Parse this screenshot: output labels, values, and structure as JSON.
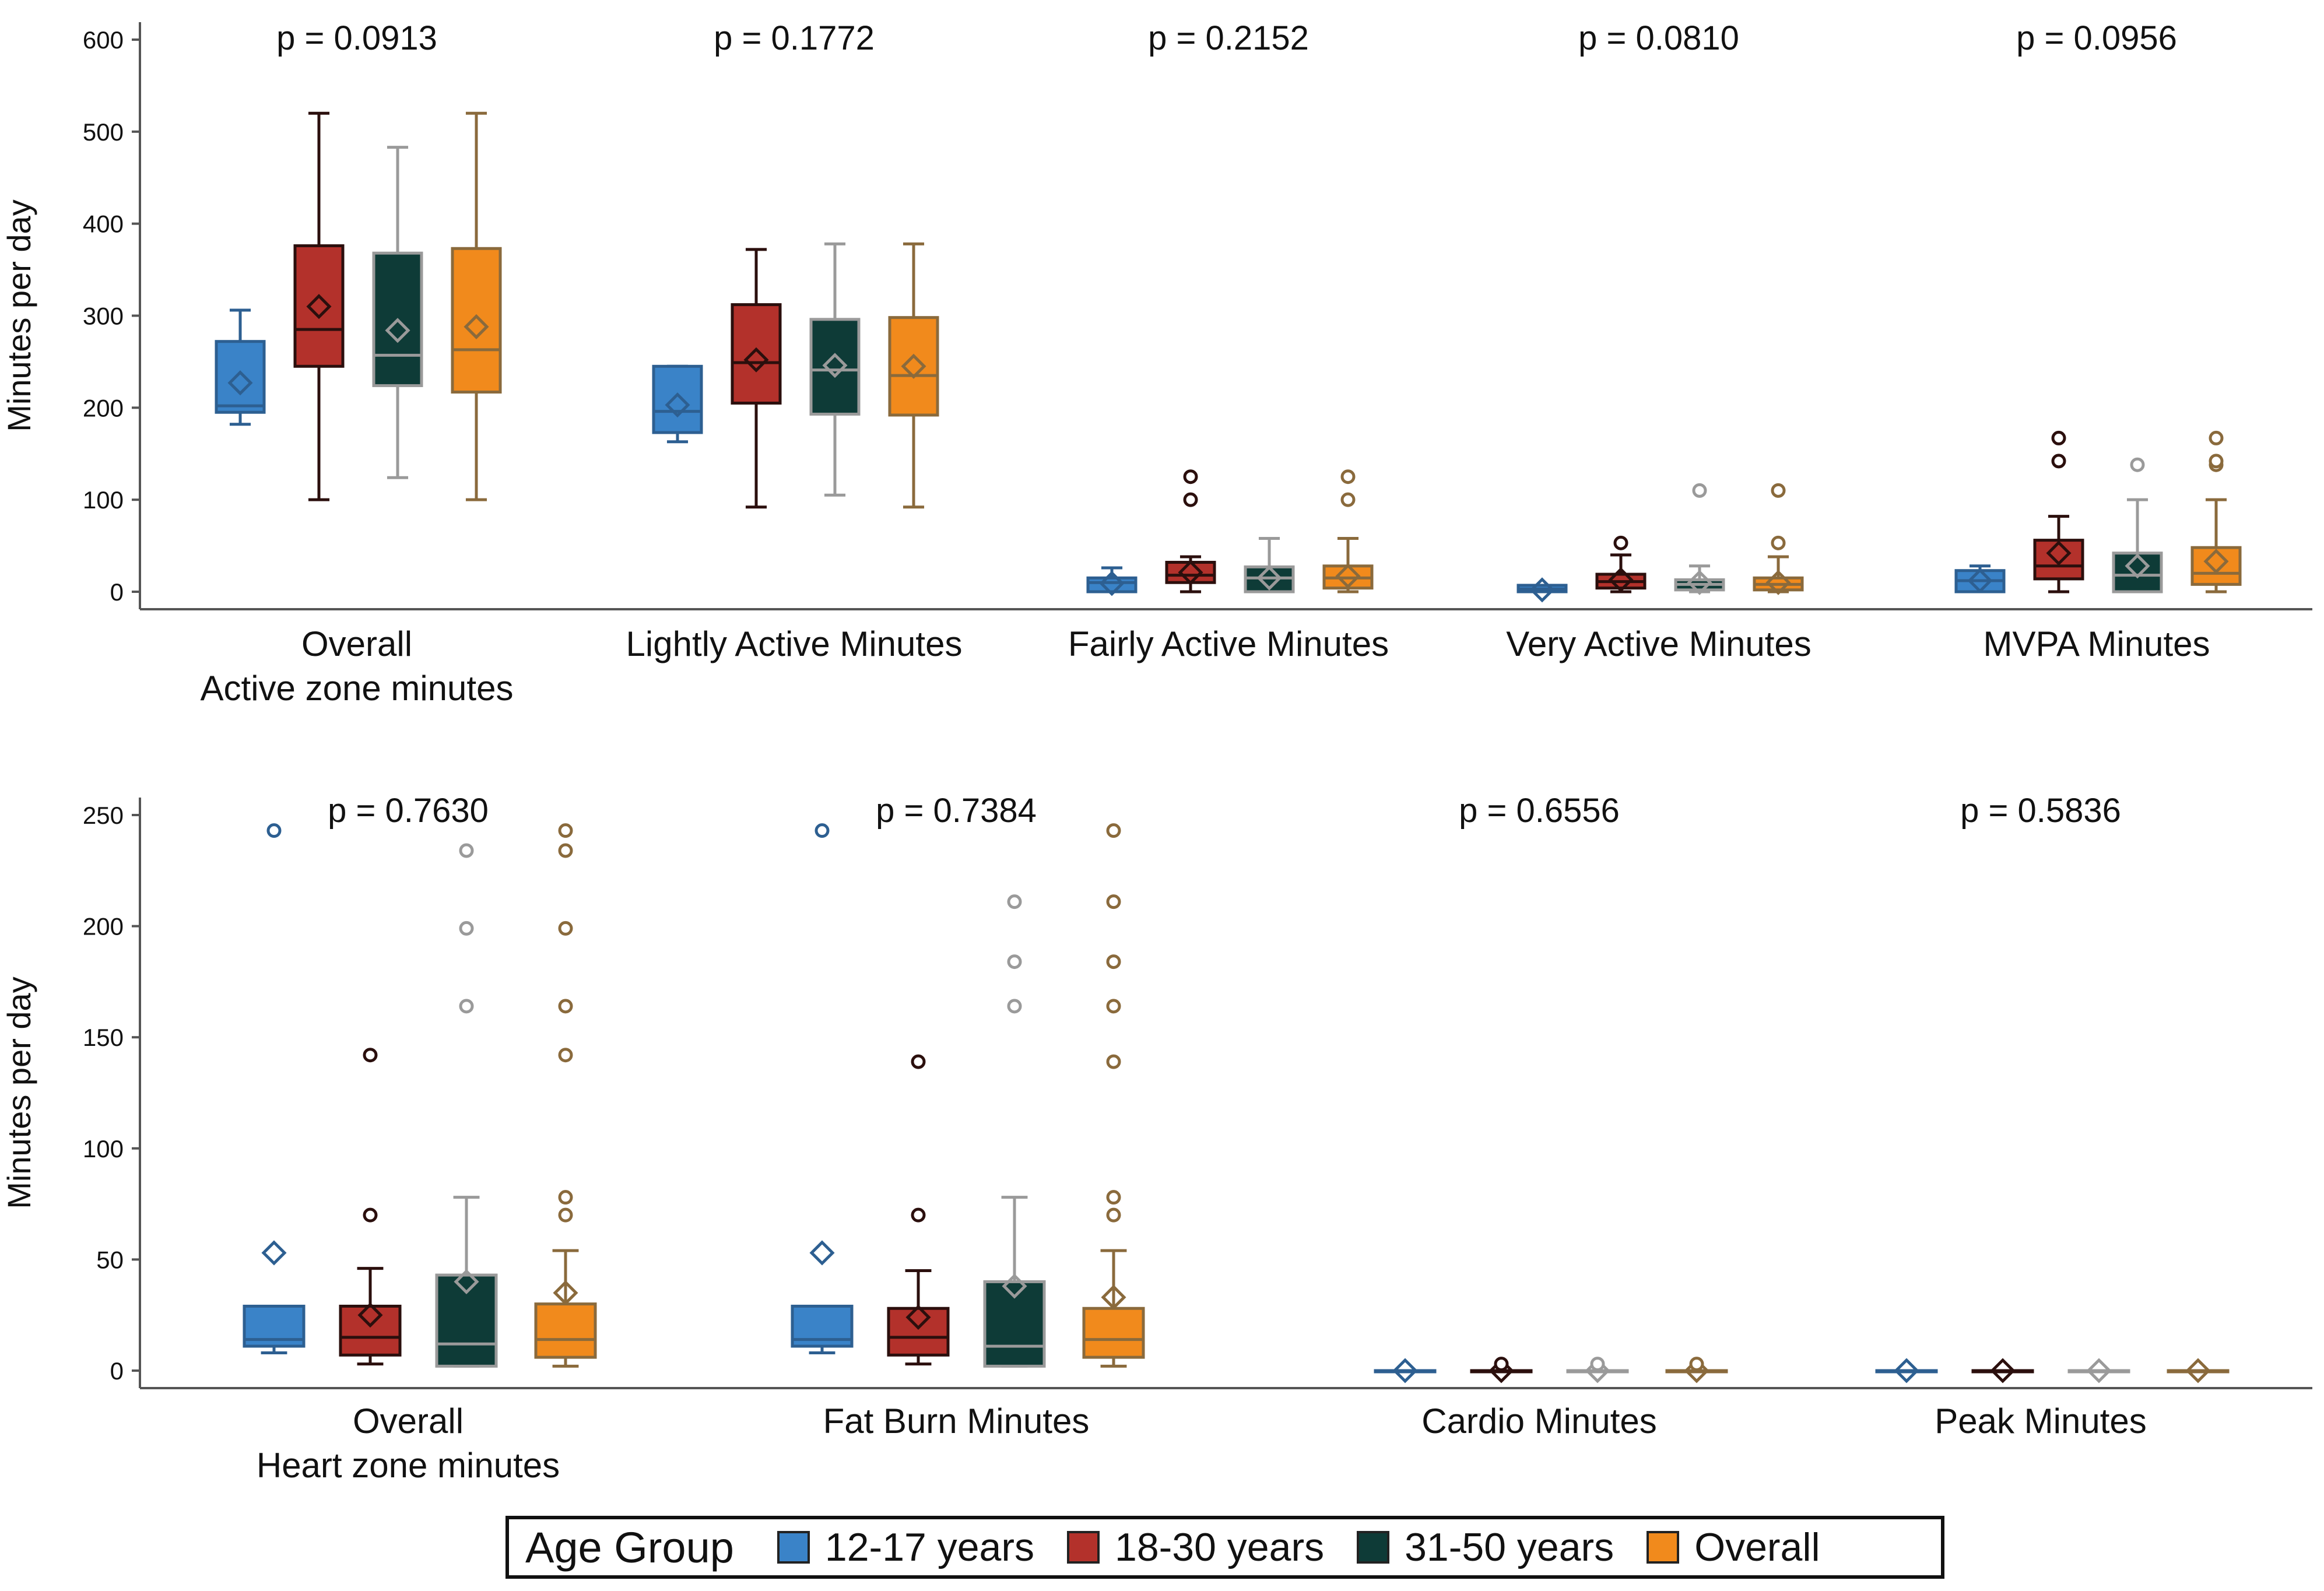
{
  "chart_data": [
    {
      "type": "box",
      "ylabel": "Minutes per day",
      "ylim": [
        0,
        600
      ],
      "yticks": [
        0,
        100,
        200,
        300,
        400,
        500,
        600
      ],
      "groups": [
        {
          "label": [
            "Overall",
            "Active zone minutes"
          ],
          "p_value": "p = 0.0913",
          "boxes": [
            {
              "series": "12-17 years",
              "min": 182,
              "q1": 195,
              "median": 202,
              "q3": 272,
              "max": 306,
              "mean": 227,
              "outliers": []
            },
            {
              "series": "18-30 years",
              "min": 100,
              "q1": 245,
              "median": 285,
              "q3": 376,
              "max": 520,
              "mean": 310,
              "outliers": []
            },
            {
              "series": "31-50 years",
              "min": 124,
              "q1": 224,
              "median": 257,
              "q3": 368,
              "max": 483,
              "mean": 284,
              "outliers": []
            },
            {
              "series": "Overall",
              "min": 100,
              "q1": 217,
              "median": 263,
              "q3": 373,
              "max": 520,
              "mean": 288,
              "outliers": []
            }
          ]
        },
        {
          "label": [
            "Lightly Active Minutes"
          ],
          "p_value": "p = 0.1772",
          "boxes": [
            {
              "series": "12-17 years",
              "min": 163,
              "q1": 173,
              "median": 196,
              "q3": 245,
              "max": 245,
              "mean": 203,
              "outliers": []
            },
            {
              "series": "18-30 years",
              "min": 92,
              "q1": 205,
              "median": 249,
              "q3": 312,
              "max": 372,
              "mean": 252,
              "outliers": []
            },
            {
              "series": "31-50 years",
              "min": 105,
              "q1": 193,
              "median": 241,
              "q3": 296,
              "max": 378,
              "mean": 246,
              "outliers": []
            },
            {
              "series": "Overall",
              "min": 92,
              "q1": 192,
              "median": 235,
              "q3": 298,
              "max": 378,
              "mean": 245,
              "outliers": []
            }
          ]
        },
        {
          "label": [
            "Fairly Active Minutes"
          ],
          "p_value": "p = 0.2152",
          "boxes": [
            {
              "series": "12-17 years",
              "min": 0,
              "q1": 0,
              "median": 10,
              "q3": 15,
              "max": 26,
              "mean": 9,
              "outliers": []
            },
            {
              "series": "18-30 years",
              "min": 0,
              "q1": 10,
              "median": 18,
              "q3": 32,
              "max": 38,
              "mean": 21,
              "outliers": [
                100,
                125
              ]
            },
            {
              "series": "31-50 years",
              "min": 0,
              "q1": 0,
              "median": 15,
              "q3": 27,
              "max": 58,
              "mean": 15,
              "outliers": []
            },
            {
              "series": "Overall",
              "min": 0,
              "q1": 4,
              "median": 15,
              "q3": 28,
              "max": 58,
              "mean": 17,
              "outliers": [
                100,
                125
              ]
            }
          ]
        },
        {
          "label": [
            "Very Active Minutes"
          ],
          "p_value": "p = 0.0810",
          "boxes": [
            {
              "series": "12-17 years",
              "min": 0,
              "q1": 0,
              "median": 3,
              "q3": 7,
              "max": 7,
              "mean": 2,
              "outliers": []
            },
            {
              "series": "18-30 years",
              "min": 0,
              "q1": 4,
              "median": 11,
              "q3": 19,
              "max": 40,
              "mean": 13,
              "outliers": [
                53
              ]
            },
            {
              "series": "31-50 years",
              "min": 0,
              "q1": 2,
              "median": 8,
              "q3": 13,
              "max": 28,
              "mean": 10,
              "outliers": [
                110
              ]
            },
            {
              "series": "Overall",
              "min": 0,
              "q1": 2,
              "median": 8,
              "q3": 15,
              "max": 38,
              "mean": 10,
              "outliers": [
                53,
                110
              ]
            }
          ]
        },
        {
          "label": [
            "MVPA Minutes"
          ],
          "p_value": "p = 0.0956",
          "boxes": [
            {
              "series": "12-17 years",
              "min": 0,
              "q1": 0,
              "median": 12,
              "q3": 23,
              "max": 28,
              "mean": 12,
              "outliers": []
            },
            {
              "series": "18-30 years",
              "min": 0,
              "q1": 14,
              "median": 28,
              "q3": 56,
              "max": 82,
              "mean": 42,
              "outliers": [
                142,
                167
              ]
            },
            {
              "series": "31-50 years",
              "min": 0,
              "q1": 0,
              "median": 18,
              "q3": 42,
              "max": 100,
              "mean": 28,
              "outliers": [
                138
              ]
            },
            {
              "series": "Overall",
              "min": 0,
              "q1": 8,
              "median": 20,
              "q3": 48,
              "max": 100,
              "mean": 33,
              "outliers": [
                138,
                142,
                167
              ]
            }
          ]
        }
      ]
    },
    {
      "type": "box",
      "ylabel": "Minutes per day",
      "ylim": [
        0,
        250
      ],
      "yticks": [
        0,
        50,
        100,
        150,
        200,
        250
      ],
      "groups": [
        {
          "label": [
            "Overall",
            "Heart zone minutes"
          ],
          "p_value": "p = 0.7630",
          "boxes": [
            {
              "series": "12-17 years",
              "min": 8,
              "q1": 11,
              "median": 14,
              "q3": 29,
              "max": 29,
              "mean": 53,
              "outliers": [
                243
              ]
            },
            {
              "series": "18-30 years",
              "min": 3,
              "q1": 7,
              "median": 15,
              "q3": 29,
              "max": 46,
              "mean": 25,
              "outliers": [
                70,
                142
              ]
            },
            {
              "series": "31-50 years",
              "min": 2,
              "q1": 2,
              "median": 12,
              "q3": 43,
              "max": 78,
              "mean": 40,
              "outliers": [
                164,
                199,
                234
              ]
            },
            {
              "series": "Overall",
              "min": 2,
              "q1": 6,
              "median": 14,
              "q3": 30,
              "max": 54,
              "mean": 35,
              "outliers": [
                70,
                78,
                142,
                164,
                199,
                234,
                243
              ]
            }
          ]
        },
        {
          "label": [
            "Fat Burn Minutes"
          ],
          "p_value": "p = 0.7384",
          "boxes": [
            {
              "series": "12-17 years",
              "min": 8,
              "q1": 11,
              "median": 14,
              "q3": 29,
              "max": 29,
              "mean": 53,
              "outliers": [
                243
              ]
            },
            {
              "series": "18-30 years",
              "min": 3,
              "q1": 7,
              "median": 15,
              "q3": 28,
              "max": 45,
              "mean": 24,
              "outliers": [
                70,
                139
              ]
            },
            {
              "series": "31-50 years",
              "min": 2,
              "q1": 2,
              "median": 11,
              "q3": 40,
              "max": 78,
              "mean": 38,
              "outliers": [
                164,
                184,
                211
              ]
            },
            {
              "series": "Overall",
              "min": 2,
              "q1": 6,
              "median": 14,
              "q3": 28,
              "max": 54,
              "mean": 33,
              "outliers": [
                70,
                78,
                139,
                164,
                184,
                211,
                243
              ]
            }
          ]
        },
        {
          "label": [
            "Cardio Minutes"
          ],
          "p_value": "p = 0.6556",
          "boxes": [
            {
              "series": "12-17 years",
              "min": 0,
              "q1": 0,
              "median": 0,
              "q3": 0,
              "max": 0,
              "mean": 0,
              "outliers": []
            },
            {
              "series": "18-30 years",
              "min": 0,
              "q1": 0,
              "median": 0,
              "q3": 0,
              "max": 0,
              "mean": 0,
              "outliers": [
                3
              ]
            },
            {
              "series": "31-50 years",
              "min": 0,
              "q1": 0,
              "median": 0,
              "q3": 0,
              "max": 0,
              "mean": 0,
              "outliers": [
                3
              ]
            },
            {
              "series": "Overall",
              "min": 0,
              "q1": 0,
              "median": 0,
              "q3": 0,
              "max": 0,
              "mean": 0,
              "outliers": [
                3
              ]
            }
          ]
        },
        {
          "label": [
            "Peak Minutes"
          ],
          "p_value": "p = 0.5836",
          "boxes": [
            {
              "series": "12-17 years",
              "min": 0,
              "q1": 0,
              "median": 0,
              "q3": 0,
              "max": 0,
              "mean": 0,
              "outliers": []
            },
            {
              "series": "18-30 years",
              "min": 0,
              "q1": 0,
              "median": 0,
              "q3": 0,
              "max": 0,
              "mean": 0,
              "outliers": []
            },
            {
              "series": "31-50 years",
              "min": 0,
              "q1": 0,
              "median": 0,
              "q3": 0,
              "max": 0,
              "mean": 0,
              "outliers": []
            },
            {
              "series": "Overall",
              "min": 0,
              "q1": 0,
              "median": 0,
              "q3": 0,
              "max": 0,
              "mean": 0,
              "outliers": []
            }
          ]
        }
      ]
    }
  ],
  "legend": {
    "title": "Age Group",
    "placement": "bottom",
    "items": [
      {
        "label": "12-17 years",
        "color": "#3a83c8",
        "line": "#2d5f91"
      },
      {
        "label": "18-30 years",
        "color": "#b3312b",
        "line": "#2b0f0d"
      },
      {
        "label": "31-50 years",
        "color": "#0e3b37",
        "line": "#9a9a9a"
      },
      {
        "label": "Overall",
        "color": "#f18a1c",
        "line": "#8a6a3c"
      }
    ]
  }
}
